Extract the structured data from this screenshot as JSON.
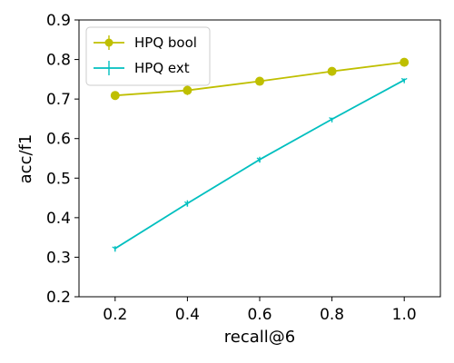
{
  "chart_data": {
    "type": "line",
    "xlabel": "recall@6",
    "ylabel": "acc/f1",
    "xlim": [
      0.1,
      1.1
    ],
    "ylim": [
      0.2,
      0.9
    ],
    "x_ticks": [
      "0.2",
      "0.4",
      "0.6",
      "0.8",
      "1.0"
    ],
    "y_ticks": [
      "0.2",
      "0.3",
      "0.4",
      "0.5",
      "0.6",
      "0.7",
      "0.8",
      "0.9"
    ],
    "x": [
      0.2,
      0.4,
      0.6,
      0.8,
      1.0
    ],
    "grid": false,
    "legend_position": "top-left",
    "series": [
      {
        "name": "HPQ bool",
        "values": [
          0.709,
          0.722,
          0.745,
          0.77,
          0.793
        ],
        "errors": [
          0.003,
          0.012,
          0.005,
          0.008,
          0.004
        ],
        "color": "#bfbf00",
        "marker": "circle"
      },
      {
        "name": "HPQ ext",
        "values": [
          0.322,
          0.436,
          0.547,
          0.649,
          0.748
        ],
        "errors": [
          0.006,
          0.008,
          0.007,
          0.004,
          0.004
        ],
        "color": "#00bfbf",
        "marker": "tri"
      }
    ]
  }
}
